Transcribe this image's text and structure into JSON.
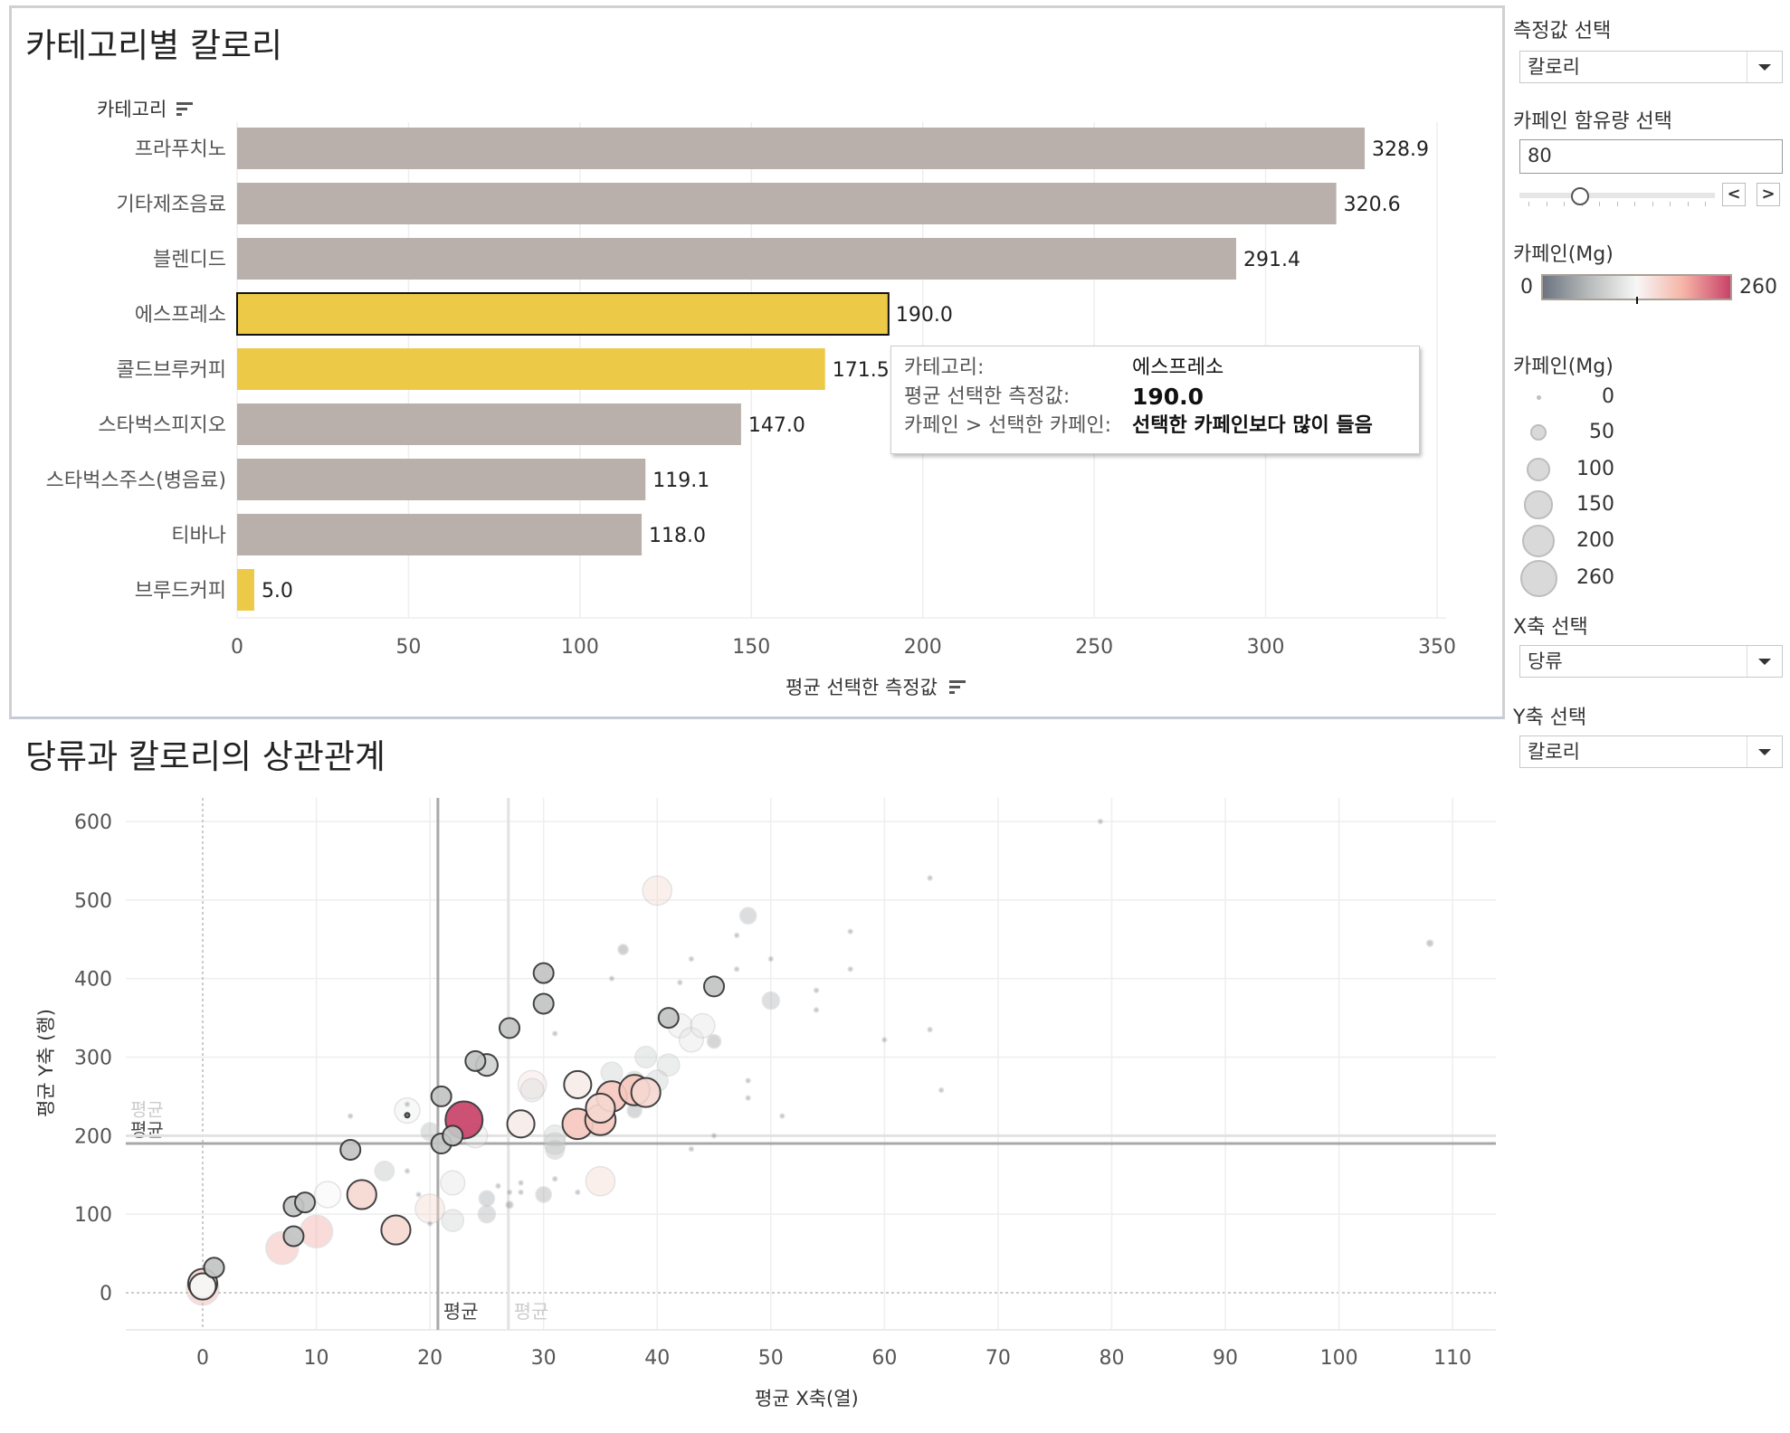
{
  "bar_chart": {
    "title": "카테고리별 칼로리",
    "category_header": "카테고리",
    "x_axis_title": "평균 선택한 측정값",
    "sort_icon": "sort-icon",
    "chart_data": {
      "type": "bar",
      "orientation": "horizontal",
      "categories": [
        "프라푸치노",
        "기타제조음료",
        "블렌디드",
        "에스프레소",
        "콜드브루커피",
        "스타벅스피지오",
        "스타벅스주스(병음료)",
        "티바나",
        "브루드커피"
      ],
      "values": [
        328.9,
        320.6,
        291.4,
        190.0,
        171.5,
        147.0,
        119.1,
        118.0,
        5.0
      ],
      "value_labels": [
        "328.9",
        "320.6",
        "291.4",
        "190.0",
        "171.5",
        "147.0",
        "119.1",
        "118.0",
        "5.0"
      ],
      "highlighted": [
        false,
        false,
        false,
        true,
        true,
        false,
        false,
        false,
        true
      ],
      "selected": "에스프레소",
      "xlim": [
        0,
        350
      ],
      "xticks": [
        0,
        50,
        100,
        150,
        200,
        250,
        300,
        350
      ],
      "grid": true,
      "colors": {
        "default": "#bab0ab",
        "highlight": "#edc948"
      }
    }
  },
  "tooltip": {
    "rows": [
      {
        "key": "카테고리:",
        "value": "에스프레소"
      },
      {
        "key": "평균 선택한 측정값:",
        "value": "190.0"
      },
      {
        "key": "카페인 > 선택한 카페인:",
        "value": "선택한 카페인보다 많이 들음"
      }
    ]
  },
  "controls": {
    "measure_label": "측정값 선택",
    "measure_value": "칼로리",
    "caffeine_label": "카페인 함유량 선택",
    "caffeine_value": "80",
    "slider_fraction": 0.31,
    "prev_label": "<",
    "next_label": ">",
    "color_legend_title": "카페인(Mg)",
    "color_min": "0",
    "color_max": "260",
    "color_stops": [
      "#6b7480",
      "#b9bcbc",
      "#f7f7f7",
      "#f6b3a6",
      "#c8436a"
    ],
    "size_legend_title": "카페인(Mg)",
    "size_legend": [
      "0",
      "50",
      "100",
      "150",
      "200",
      "260"
    ],
    "x_label": "X축 선택",
    "x_value": "당류",
    "y_label": "Y축 선택",
    "y_value": "칼로리"
  },
  "scatter": {
    "title": "당류과 칼로리의 상관관계",
    "chart_data": {
      "type": "scatter",
      "xlabel": "평균 X축(열)",
      "ylabel": "평균 Y축 (행)",
      "xlim": [
        -7,
        113
      ],
      "ylim": [
        -50,
        630
      ],
      "xticks": [
        0,
        10,
        20,
        30,
        40,
        50,
        60,
        70,
        80,
        90,
        100,
        110
      ],
      "yticks": [
        0,
        100,
        200,
        300,
        400,
        500,
        600
      ],
      "grid": true,
      "reference_lines": [
        {
          "axis": "x",
          "value": 20.7,
          "label": "평균",
          "strong": true
        },
        {
          "axis": "x",
          "value": 26.9,
          "label": "평균",
          "strong": false
        },
        {
          "axis": "y",
          "value": 190,
          "label": "평균",
          "strong": true
        },
        {
          "axis": "y",
          "value": 200,
          "label": "평균",
          "strong": false
        }
      ],
      "points": [
        {
          "x": 0,
          "y": 5,
          "c": 200,
          "h": false
        },
        {
          "x": 0,
          "y": 12,
          "c": 160,
          "h": true
        },
        {
          "x": 0,
          "y": 8,
          "c": 130,
          "h": true
        },
        {
          "x": 1,
          "y": 32,
          "c": 75,
          "h": true
        },
        {
          "x": 8,
          "y": 110,
          "c": 75,
          "h": true
        },
        {
          "x": 9,
          "y": 115,
          "c": 75,
          "h": true
        },
        {
          "x": 8,
          "y": 72,
          "c": 75,
          "h": true
        },
        {
          "x": 13,
          "y": 182,
          "c": 75,
          "h": true
        },
        {
          "x": 14,
          "y": 125,
          "c": 160,
          "h": true
        },
        {
          "x": 17,
          "y": 80,
          "c": 160,
          "h": true
        },
        {
          "x": 21,
          "y": 250,
          "c": 75,
          "h": true
        },
        {
          "x": 21,
          "y": 190,
          "c": 75,
          "h": true
        },
        {
          "x": 22,
          "y": 200,
          "c": 75,
          "h": true
        },
        {
          "x": 23,
          "y": 220,
          "c": 260,
          "h": true
        },
        {
          "x": 24,
          "y": 295,
          "c": 75,
          "h": true
        },
        {
          "x": 25,
          "y": 290,
          "c": 90,
          "h": true
        },
        {
          "x": 27,
          "y": 337,
          "c": 75,
          "h": true
        },
        {
          "x": 30,
          "y": 407,
          "c": 75,
          "h": true
        },
        {
          "x": 30,
          "y": 368,
          "c": 75,
          "h": true
        },
        {
          "x": 28,
          "y": 215,
          "c": 140,
          "h": true
        },
        {
          "x": 33,
          "y": 265,
          "c": 140,
          "h": true
        },
        {
          "x": 33,
          "y": 215,
          "c": 175,
          "h": true
        },
        {
          "x": 35,
          "y": 220,
          "c": 175,
          "h": true
        },
        {
          "x": 35,
          "y": 235,
          "c": 160,
          "h": true
        },
        {
          "x": 36,
          "y": 250,
          "c": 175,
          "h": true
        },
        {
          "x": 38,
          "y": 258,
          "c": 175,
          "h": true
        },
        {
          "x": 39,
          "y": 255,
          "c": 160,
          "h": true
        },
        {
          "x": 41,
          "y": 350,
          "c": 75,
          "h": true
        },
        {
          "x": 45,
          "y": 390,
          "c": 75,
          "h": true
        },
        {
          "x": 18,
          "y": 226,
          "c": 0,
          "h": true
        },
        {
          "x": 7,
          "y": 57,
          "c": 200,
          "h": false
        },
        {
          "x": 10,
          "y": 78,
          "c": 200,
          "h": false
        },
        {
          "x": 11,
          "y": 125,
          "c": 130,
          "h": false
        },
        {
          "x": 16,
          "y": 155,
          "c": 70,
          "h": false
        },
        {
          "x": 18,
          "y": 232,
          "c": 120,
          "h": false
        },
        {
          "x": 20,
          "y": 205,
          "c": 60,
          "h": false
        },
        {
          "x": 20,
          "y": 107,
          "c": 160,
          "h": false
        },
        {
          "x": 22,
          "y": 140,
          "c": 110,
          "h": false
        },
        {
          "x": 22,
          "y": 92,
          "c": 90,
          "h": false
        },
        {
          "x": 24,
          "y": 200,
          "c": 110,
          "h": false
        },
        {
          "x": 25,
          "y": 120,
          "c": 45,
          "h": false
        },
        {
          "x": 25,
          "y": 100,
          "c": 55,
          "h": false
        },
        {
          "x": 27,
          "y": 112,
          "c": 10,
          "h": false
        },
        {
          "x": 29,
          "y": 265,
          "c": 150,
          "h": false
        },
        {
          "x": 29,
          "y": 258,
          "c": 100,
          "h": false
        },
        {
          "x": 30,
          "y": 125,
          "c": 45,
          "h": false
        },
        {
          "x": 31,
          "y": 200,
          "c": 85,
          "h": false
        },
        {
          "x": 31,
          "y": 190,
          "c": 85,
          "h": false
        },
        {
          "x": 31,
          "y": 182,
          "c": 65,
          "h": false
        },
        {
          "x": 35,
          "y": 142,
          "c": 160,
          "h": false
        },
        {
          "x": 36,
          "y": 280,
          "c": 85,
          "h": false
        },
        {
          "x": 38,
          "y": 270,
          "c": 65,
          "h": false
        },
        {
          "x": 38,
          "y": 232,
          "c": 40,
          "h": false
        },
        {
          "x": 39,
          "y": 300,
          "c": 85,
          "h": false
        },
        {
          "x": 40,
          "y": 270,
          "c": 85,
          "h": false
        },
        {
          "x": 41,
          "y": 290,
          "c": 90,
          "h": false
        },
        {
          "x": 42,
          "y": 340,
          "c": 110,
          "h": false
        },
        {
          "x": 43,
          "y": 322,
          "c": 110,
          "h": false
        },
        {
          "x": 44,
          "y": 340,
          "c": 110,
          "h": false
        },
        {
          "x": 45,
          "y": 320,
          "c": 35,
          "h": false
        },
        {
          "x": 50,
          "y": 372,
          "c": 55,
          "h": false
        },
        {
          "x": 40,
          "y": 512,
          "c": 160,
          "h": false
        },
        {
          "x": 48,
          "y": 480,
          "c": 50,
          "h": false
        },
        {
          "x": 37,
          "y": 437,
          "c": 20,
          "h": false
        },
        {
          "x": 13,
          "y": 225,
          "c": 3,
          "h": false
        },
        {
          "x": 18,
          "y": 240,
          "c": 3,
          "h": false
        },
        {
          "x": 18,
          "y": 155,
          "c": 3,
          "h": false
        },
        {
          "x": 19,
          "y": 125,
          "c": 3,
          "h": false
        },
        {
          "x": 20,
          "y": 88,
          "c": 3,
          "h": false
        },
        {
          "x": 26,
          "y": 136,
          "c": 3,
          "h": false
        },
        {
          "x": 27,
          "y": 128,
          "c": 3,
          "h": false
        },
        {
          "x": 28,
          "y": 128,
          "c": 3,
          "h": false
        },
        {
          "x": 28,
          "y": 140,
          "c": 3,
          "h": false
        },
        {
          "x": 31,
          "y": 145,
          "c": 3,
          "h": false
        },
        {
          "x": 33,
          "y": 128,
          "c": 3,
          "h": false
        },
        {
          "x": 31,
          "y": 330,
          "c": 3,
          "h": false
        },
        {
          "x": 36,
          "y": 400,
          "c": 3,
          "h": false
        },
        {
          "x": 42,
          "y": 395,
          "c": 3,
          "h": false
        },
        {
          "x": 43,
          "y": 425,
          "c": 3,
          "h": false
        },
        {
          "x": 47,
          "y": 455,
          "c": 3,
          "h": false
        },
        {
          "x": 47,
          "y": 412,
          "c": 3,
          "h": false
        },
        {
          "x": 48,
          "y": 270,
          "c": 3,
          "h": false
        },
        {
          "x": 48,
          "y": 248,
          "c": 3,
          "h": false
        },
        {
          "x": 50,
          "y": 425,
          "c": 3,
          "h": false
        },
        {
          "x": 51,
          "y": 225,
          "c": 3,
          "h": false
        },
        {
          "x": 54,
          "y": 385,
          "c": 3,
          "h": false
        },
        {
          "x": 54,
          "y": 360,
          "c": 3,
          "h": false
        },
        {
          "x": 57,
          "y": 460,
          "c": 3,
          "h": false
        },
        {
          "x": 57,
          "y": 412,
          "c": 3,
          "h": false
        },
        {
          "x": 45,
          "y": 200,
          "c": 3,
          "h": false
        },
        {
          "x": 43,
          "y": 183,
          "c": 3,
          "h": false
        },
        {
          "x": 60,
          "y": 322,
          "c": 3,
          "h": false
        },
        {
          "x": 79,
          "y": 600,
          "c": 3,
          "h": false
        },
        {
          "x": 64,
          "y": 528,
          "c": 3,
          "h": false
        },
        {
          "x": 64,
          "y": 335,
          "c": 3,
          "h": false
        },
        {
          "x": 65,
          "y": 258,
          "c": 3,
          "h": false
        },
        {
          "x": 108,
          "y": 445,
          "c": 8,
          "h": false
        }
      ]
    }
  }
}
